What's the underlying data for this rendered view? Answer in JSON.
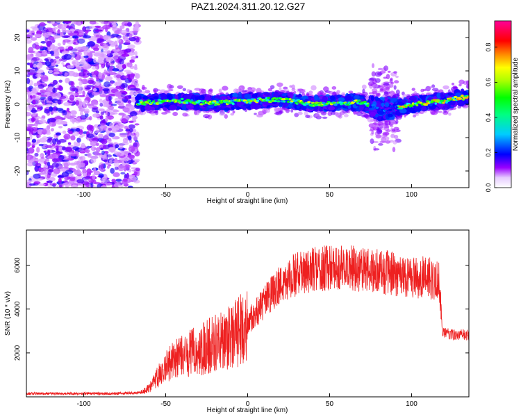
{
  "figure_title": "PAZ1.2024.311.20.12.G27",
  "chart_data": [
    {
      "type": "heatmap",
      "xlabel": "Height of straight line (km)",
      "ylabel": "Frequency (Hz)",
      "xlim": [
        -135,
        135
      ],
      "ylim": [
        -25,
        25
      ],
      "x_ticks": [
        -100,
        -50,
        0,
        50,
        100
      ],
      "y_ticks": [
        -20,
        -10,
        0,
        10,
        20
      ],
      "grid": false,
      "colorbar": {
        "label": "Normalized spectral amplitude",
        "range": [
          0,
          0.95
        ],
        "ticks": [
          0.0,
          0.2,
          0.4,
          0.6,
          0.8
        ],
        "colormap": "rainbow",
        "colors": [
          "#ffffff",
          "#9900ff",
          "#0000ff",
          "#00ffff",
          "#00ff00",
          "#ffff00",
          "#ff8000",
          "#ff0000",
          "#ff00aa"
        ]
      },
      "regions": [
        {
          "x": [
            -135,
            -67
          ],
          "pattern": "broadband noise",
          "level": 0.15
        },
        {
          "x": [
            -67,
            75
          ],
          "pattern": "narrow band near 0 Hz",
          "level": 0.55
        },
        {
          "x": [
            75,
            92
          ],
          "pattern": "broadened band",
          "level": 0.3
        },
        {
          "x": [
            92,
            135
          ],
          "pattern": "narrow band near 0 Hz",
          "level": 0.65
        }
      ],
      "ridge": [
        {
          "x": -60,
          "y": 0.5
        },
        {
          "x": -40,
          "y": 1.0
        },
        {
          "x": -20,
          "y": 0.3
        },
        {
          "x": 0,
          "y": 1.0
        },
        {
          "x": 20,
          "y": 1.5
        },
        {
          "x": 40,
          "y": 0.0
        },
        {
          "x": 60,
          "y": 0.5
        },
        {
          "x": 70,
          "y": 0.5
        },
        {
          "x": 80,
          "y": -1.5
        },
        {
          "x": 90,
          "y": -1.0
        },
        {
          "x": 100,
          "y": 0.0
        },
        {
          "x": 110,
          "y": 0.5
        },
        {
          "x": 120,
          "y": 1.0
        },
        {
          "x": 130,
          "y": 2.0
        }
      ]
    },
    {
      "type": "line",
      "xlabel": "Height of straight line (km)",
      "ylabel": "SNR (10 * v/v)",
      "xlim": [
        -135,
        135
      ],
      "ylim": [
        0,
        7600
      ],
      "x_ticks": [
        -100,
        -50,
        0,
        50,
        100
      ],
      "y_ticks": [
        2000,
        4000,
        6000
      ],
      "grid": false,
      "series": [
        {
          "color": "#ee2020",
          "x": [
            -135,
            -120,
            -100,
            -80,
            -65,
            -60,
            -55,
            -50,
            -45,
            -40,
            -35,
            -30,
            -25,
            -20,
            -15,
            -10,
            -5,
            0,
            5,
            10,
            15,
            20,
            25,
            30,
            40,
            50,
            60,
            70,
            80,
            90,
            100,
            110,
            117,
            119,
            125,
            135
          ],
          "y": [
            150,
            150,
            150,
            150,
            200,
            400,
            900,
            1400,
            1700,
            1800,
            2000,
            2100,
            2300,
            2500,
            2600,
            2700,
            3000,
            3400,
            3800,
            4300,
            4700,
            5100,
            5400,
            5600,
            5800,
            5900,
            5900,
            5800,
            5700,
            5600,
            5500,
            5400,
            5300,
            2900,
            2850,
            2800
          ]
        }
      ]
    }
  ]
}
